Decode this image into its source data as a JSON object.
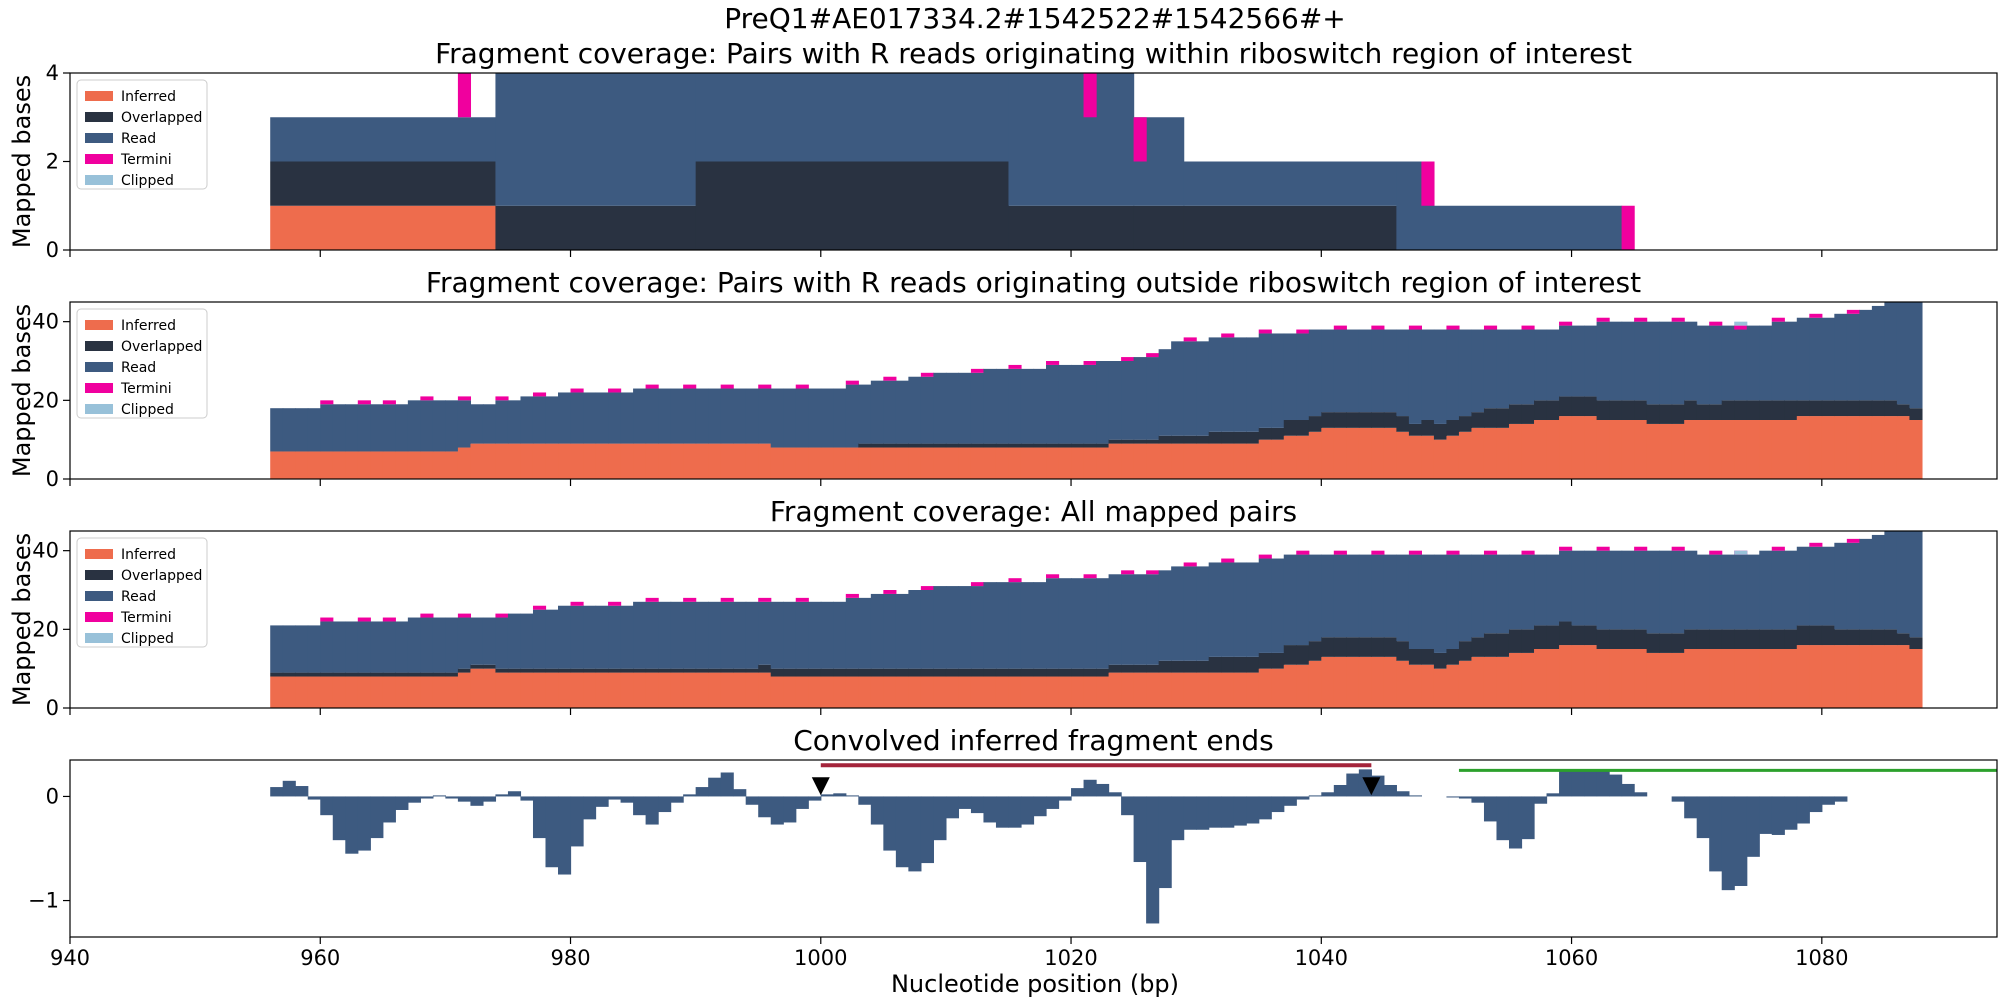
{
  "figure_title": "PreQ1#AE017334.2#1542522#1542566#+",
  "colors": {
    "inferred": "#ee6c4d",
    "overlapped": "#293241",
    "read": "#3d5a80",
    "termini": "#f0009e",
    "clipped": "#98c1d9",
    "red_bar": "#a4243b",
    "green_bar": "#2ca02c",
    "marker": "#000000"
  },
  "legend_labels": [
    "Inferred",
    "Overlapped",
    "Read",
    "Termini",
    "Clipped"
  ],
  "xlabel": "Nucleotide position (bp)",
  "xlim": [
    940,
    1094
  ],
  "xticks": [
    940,
    960,
    980,
    1000,
    1020,
    1040,
    1060,
    1080
  ],
  "chart_data": [
    {
      "type": "area",
      "stacked": true,
      "step": true,
      "title": "Fragment coverage: Pairs with R reads originating within riboswitch region of interest",
      "ylabel": "Mapped bases",
      "ylim": [
        0,
        4
      ],
      "yticks": [
        0,
        2,
        4
      ],
      "legend_position": "upper-left",
      "segments": [
        {
          "x0": 956,
          "x1": 974,
          "inferred": 1,
          "overlapped": 1,
          "read": 1,
          "termini": 0,
          "clipped": 0
        },
        {
          "x0": 974,
          "x1": 990,
          "inferred": 0,
          "overlapped": 1,
          "read": 3,
          "termini": 0,
          "clipped": 0
        },
        {
          "x0": 990,
          "x1": 1015,
          "inferred": 0,
          "overlapped": 2,
          "read": 2,
          "termini": 0,
          "clipped": 0
        },
        {
          "x0": 1015,
          "x1": 1025,
          "inferred": 0,
          "overlapped": 1,
          "read": 3,
          "termini": 0,
          "clipped": 0
        },
        {
          "x0": 1025,
          "x1": 1029,
          "inferred": 0,
          "overlapped": 1,
          "read": 2,
          "termini": 0,
          "clipped": 0
        },
        {
          "x0": 1029,
          "x1": 1046,
          "inferred": 0,
          "overlapped": 1,
          "read": 1,
          "termini": 0,
          "clipped": 0
        },
        {
          "x0": 1046,
          "x1": 1049,
          "inferred": 0,
          "overlapped": 0,
          "read": 2,
          "termini": 0,
          "clipped": 0
        },
        {
          "x0": 1049,
          "x1": 1064,
          "inferred": 0,
          "overlapped": 0,
          "read": 1,
          "termini": 0,
          "clipped": 0
        }
      ],
      "termini_marks": [
        {
          "x": 971,
          "y0": 3,
          "y1": 4
        },
        {
          "x": 1021,
          "y0": 3,
          "y1": 4
        },
        {
          "x": 1025,
          "y0": 2,
          "y1": 3
        },
        {
          "x": 1048,
          "y0": 1,
          "y1": 2
        },
        {
          "x": 1064,
          "y0": 0,
          "y1": 1
        }
      ]
    },
    {
      "type": "area",
      "stacked": true,
      "step": true,
      "title": "Fragment coverage: Pairs with R reads originating outside riboswitch region of interest",
      "ylabel": "Mapped bases",
      "ylim": [
        0,
        45
      ],
      "yticks": [
        0,
        20,
        40
      ],
      "legend_position": "upper-left",
      "x_start": 956,
      "x_end": 1088,
      "anchors": [
        {
          "x": 956,
          "inferred": 7,
          "overlapped": 0,
          "total": 18
        },
        {
          "x": 970,
          "inferred": 7,
          "overlapped": 0,
          "total": 20
        },
        {
          "x": 972,
          "inferred": 9,
          "overlapped": 0,
          "total": 19
        },
        {
          "x": 980,
          "inferred": 9,
          "overlapped": 0,
          "total": 22
        },
        {
          "x": 990,
          "inferred": 9,
          "overlapped": 0,
          "total": 23
        },
        {
          "x": 1000,
          "inferred": 8,
          "overlapped": 0,
          "total": 23
        },
        {
          "x": 1005,
          "inferred": 8,
          "overlapped": 1,
          "total": 25
        },
        {
          "x": 1010,
          "inferred": 8,
          "overlapped": 1,
          "total": 27
        },
        {
          "x": 1020,
          "inferred": 8,
          "overlapped": 1,
          "total": 29
        },
        {
          "x": 1026,
          "inferred": 9,
          "overlapped": 1,
          "total": 31
        },
        {
          "x": 1028,
          "inferred": 9,
          "overlapped": 2,
          "total": 35
        },
        {
          "x": 1034,
          "inferred": 9,
          "overlapped": 3,
          "total": 36
        },
        {
          "x": 1036,
          "inferred": 10,
          "overlapped": 3,
          "total": 37
        },
        {
          "x": 1038,
          "inferred": 11,
          "overlapped": 4,
          "total": 37
        },
        {
          "x": 1040,
          "inferred": 13,
          "overlapped": 4,
          "total": 38
        },
        {
          "x": 1045,
          "inferred": 13,
          "overlapped": 4,
          "total": 38
        },
        {
          "x": 1047,
          "inferred": 11,
          "overlapped": 3,
          "total": 38
        },
        {
          "x": 1049,
          "inferred": 10,
          "overlapped": 4,
          "total": 38
        },
        {
          "x": 1052,
          "inferred": 13,
          "overlapped": 4,
          "total": 38
        },
        {
          "x": 1054,
          "inferred": 13,
          "overlapped": 5,
          "total": 38
        },
        {
          "x": 1058,
          "inferred": 15,
          "overlapped": 5,
          "total": 38
        },
        {
          "x": 1060,
          "inferred": 16,
          "overlapped": 5,
          "total": 39
        },
        {
          "x": 1063,
          "inferred": 15,
          "overlapped": 5,
          "total": 40
        },
        {
          "x": 1067,
          "inferred": 14,
          "overlapped": 5,
          "total": 40
        },
        {
          "x": 1071,
          "inferred": 15,
          "overlapped": 4,
          "total": 39
        },
        {
          "x": 1073,
          "inferred": 15,
          "overlapped": 5,
          "total": 38
        },
        {
          "x": 1076,
          "inferred": 15,
          "overlapped": 5,
          "total": 40
        },
        {
          "x": 1079,
          "inferred": 16,
          "overlapped": 4,
          "total": 41
        },
        {
          "x": 1082,
          "inferred": 16,
          "overlapped": 4,
          "total": 42
        },
        {
          "x": 1084,
          "inferred": 16,
          "overlapped": 4,
          "total": 44
        },
        {
          "x": 1086,
          "inferred": 16,
          "overlapped": 3,
          "total": 45
        },
        {
          "x": 1087,
          "inferred": 15,
          "overlapped": 3,
          "total": 45
        },
        {
          "x": 1088,
          "inferred": 15,
          "overlapped": 3,
          "total": 45
        }
      ],
      "termini_x": [
        960,
        963,
        965,
        968,
        971,
        974,
        977,
        980,
        983,
        986,
        989,
        992,
        995,
        998,
        1002,
        1005,
        1008,
        1012,
        1015,
        1018,
        1021,
        1024,
        1026,
        1029,
        1032,
        1035,
        1038,
        1041,
        1044,
        1047,
        1050,
        1053,
        1056,
        1059,
        1062,
        1065,
        1068,
        1071,
        1073,
        1076,
        1079,
        1082,
        1085
      ],
      "termini_height": 1,
      "clipped_marks": [
        {
          "x": 1073,
          "y": 39,
          "h": 1
        }
      ]
    },
    {
      "type": "area",
      "stacked": true,
      "step": true,
      "title": "Fragment coverage: All mapped pairs",
      "ylabel": "Mapped bases",
      "ylim": [
        0,
        45
      ],
      "yticks": [
        0,
        20,
        40
      ],
      "legend_position": "upper-left",
      "x_start": 956,
      "x_end": 1088,
      "anchors": [
        {
          "x": 956,
          "inferred": 8,
          "overlapped": 1,
          "total": 21
        },
        {
          "x": 970,
          "inferred": 8,
          "overlapped": 1,
          "total": 23
        },
        {
          "x": 972,
          "inferred": 10,
          "overlapped": 1,
          "total": 23
        },
        {
          "x": 974,
          "inferred": 9,
          "overlapped": 1,
          "total": 23
        },
        {
          "x": 980,
          "inferred": 9,
          "overlapped": 1,
          "total": 26
        },
        {
          "x": 990,
          "inferred": 9,
          "overlapped": 1,
          "total": 27
        },
        {
          "x": 1000,
          "inferred": 8,
          "overlapped": 2,
          "total": 27
        },
        {
          "x": 1005,
          "inferred": 8,
          "overlapped": 2,
          "total": 29
        },
        {
          "x": 1010,
          "inferred": 8,
          "overlapped": 2,
          "total": 31
        },
        {
          "x": 1020,
          "inferred": 8,
          "overlapped": 2,
          "total": 33
        },
        {
          "x": 1026,
          "inferred": 9,
          "overlapped": 2,
          "total": 34
        },
        {
          "x": 1028,
          "inferred": 9,
          "overlapped": 3,
          "total": 36
        },
        {
          "x": 1034,
          "inferred": 9,
          "overlapped": 4,
          "total": 37
        },
        {
          "x": 1036,
          "inferred": 10,
          "overlapped": 4,
          "total": 38
        },
        {
          "x": 1038,
          "inferred": 11,
          "overlapped": 5,
          "total": 39
        },
        {
          "x": 1040,
          "inferred": 13,
          "overlapped": 5,
          "total": 39
        },
        {
          "x": 1045,
          "inferred": 13,
          "overlapped": 5,
          "total": 39
        },
        {
          "x": 1047,
          "inferred": 11,
          "overlapped": 4,
          "total": 39
        },
        {
          "x": 1049,
          "inferred": 10,
          "overlapped": 4,
          "total": 39
        },
        {
          "x": 1052,
          "inferred": 13,
          "overlapped": 5,
          "total": 39
        },
        {
          "x": 1054,
          "inferred": 13,
          "overlapped": 6,
          "total": 39
        },
        {
          "x": 1058,
          "inferred": 15,
          "overlapped": 6,
          "total": 39
        },
        {
          "x": 1060,
          "inferred": 16,
          "overlapped": 5,
          "total": 40
        },
        {
          "x": 1063,
          "inferred": 15,
          "overlapped": 5,
          "total": 40
        },
        {
          "x": 1067,
          "inferred": 14,
          "overlapped": 5,
          "total": 40
        },
        {
          "x": 1071,
          "inferred": 15,
          "overlapped": 5,
          "total": 39
        },
        {
          "x": 1073,
          "inferred": 15,
          "overlapped": 5,
          "total": 39
        },
        {
          "x": 1076,
          "inferred": 15,
          "overlapped": 5,
          "total": 40
        },
        {
          "x": 1079,
          "inferred": 16,
          "overlapped": 5,
          "total": 41
        },
        {
          "x": 1082,
          "inferred": 16,
          "overlapped": 4,
          "total": 42
        },
        {
          "x": 1084,
          "inferred": 16,
          "overlapped": 4,
          "total": 44
        },
        {
          "x": 1086,
          "inferred": 16,
          "overlapped": 3,
          "total": 45
        },
        {
          "x": 1087,
          "inferred": 15,
          "overlapped": 3,
          "total": 45
        },
        {
          "x": 1088,
          "inferred": 15,
          "overlapped": 3,
          "total": 45
        }
      ],
      "termini_x": [
        960,
        963,
        965,
        968,
        971,
        974,
        977,
        980,
        983,
        986,
        989,
        992,
        995,
        998,
        1002,
        1005,
        1008,
        1012,
        1015,
        1018,
        1021,
        1024,
        1026,
        1029,
        1032,
        1035,
        1038,
        1041,
        1044,
        1047,
        1050,
        1053,
        1056,
        1059,
        1062,
        1065,
        1068,
        1071,
        1073,
        1076,
        1079,
        1082,
        1085
      ],
      "termini_height": 1,
      "clipped_marks": [
        {
          "x": 1073,
          "y": 39,
          "h": 1
        }
      ]
    },
    {
      "type": "bar",
      "title": "Convolved inferred fragment ends",
      "ylabel": "",
      "ylim": [
        -1.35,
        0.35
      ],
      "yticks": [
        -1,
        0
      ],
      "x_start": 956,
      "values": [
        0.09,
        0.15,
        0.1,
        -0.03,
        -0.18,
        -0.42,
        -0.55,
        -0.52,
        -0.4,
        -0.25,
        -0.13,
        -0.06,
        -0.02,
        0.01,
        -0.02,
        -0.05,
        -0.09,
        -0.05,
        0.02,
        0.05,
        -0.04,
        -0.4,
        -0.68,
        -0.75,
        -0.48,
        -0.22,
        -0.1,
        -0.03,
        -0.06,
        -0.18,
        -0.27,
        -0.15,
        -0.06,
        0.02,
        0.09,
        0.18,
        0.23,
        0.07,
        -0.08,
        -0.2,
        -0.27,
        -0.25,
        -0.12,
        -0.04,
        0.02,
        0.03,
        0.01,
        -0.08,
        -0.27,
        -0.52,
        -0.68,
        -0.72,
        -0.64,
        -0.42,
        -0.21,
        -0.12,
        -0.16,
        -0.25,
        -0.3,
        -0.3,
        -0.27,
        -0.19,
        -0.12,
        -0.04,
        0.08,
        0.16,
        0.12,
        0.04,
        -0.18,
        -0.63,
        -1.22,
        -0.88,
        -0.42,
        -0.32,
        -0.32,
        -0.3,
        -0.3,
        -0.28,
        -0.26,
        -0.22,
        -0.15,
        -0.09,
        -0.03,
        0.01,
        0.04,
        0.11,
        0.22,
        0.26,
        0.2,
        0.11,
        0.05,
        0.01,
        0,
        0,
        -0.01,
        -0.02,
        -0.06,
        -0.24,
        -0.42,
        -0.5,
        -0.41,
        -0.07,
        0.03,
        0.25,
        0.26,
        0.25,
        0.24,
        0.21,
        0.12,
        0.04,
        0,
        0,
        -0.05,
        -0.21,
        -0.4,
        -0.72,
        -0.9,
        -0.86,
        -0.58,
        -0.36,
        -0.37,
        -0.32,
        -0.26,
        -0.15,
        -0.08,
        -0.05
      ],
      "red_range": {
        "x0": 1000,
        "x1": 1044,
        "y": 0.3
      },
      "green_range": {
        "x0": 1051,
        "x1": 1094,
        "y": 0.25
      },
      "markers": [
        {
          "x": 1000,
          "y": 0.05
        },
        {
          "x": 1044,
          "y": 0.05
        }
      ]
    }
  ]
}
